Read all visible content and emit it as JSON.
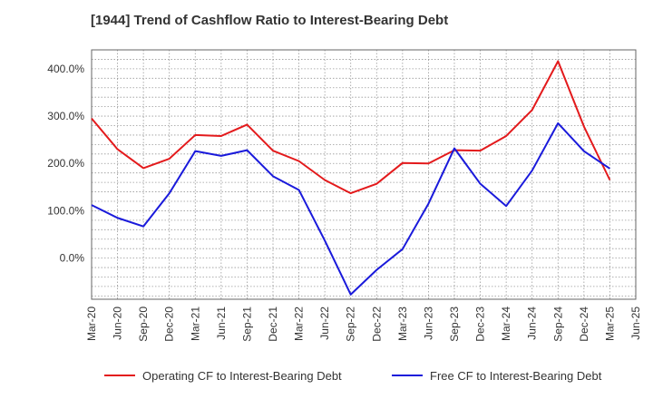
{
  "chart_data": {
    "type": "line",
    "title": "[1944]  Trend of Cashflow Ratio to Interest-Bearing Debt",
    "xlabel": "",
    "ylabel": "",
    "x": [
      "Mar-20",
      "Jun-20",
      "Sep-20",
      "Dec-20",
      "Mar-21",
      "Jun-21",
      "Sep-21",
      "Dec-21",
      "Mar-22",
      "Jun-22",
      "Sep-22",
      "Dec-22",
      "Mar-23",
      "Jun-23",
      "Sep-23",
      "Dec-23",
      "Mar-24",
      "Jun-24",
      "Sep-24",
      "Dec-24",
      "Mar-25",
      "Jun-25"
    ],
    "y_ticks": [
      0,
      100,
      200,
      300,
      400
    ],
    "y_tick_labels": [
      "0.0%",
      "100.0%",
      "200.0%",
      "300.0%",
      "400.0%"
    ],
    "ylim": [
      -87,
      440
    ],
    "grid": true,
    "legend_position": "bottom",
    "series": [
      {
        "name": "Operating CF to Interest-Bearing Debt",
        "color": "#e31a1c",
        "values": [
          295,
          230,
          190,
          210,
          260,
          258,
          282,
          227,
          205,
          165,
          137,
          157,
          201,
          200,
          228,
          227,
          258,
          313,
          416,
          278,
          165,
          null
        ]
      },
      {
        "name": "Free CF to Interest-Bearing Debt",
        "color": "#1a1adb",
        "values": [
          112,
          85,
          67,
          137,
          226,
          216,
          228,
          173,
          144,
          37,
          -77,
          -25,
          19,
          115,
          232,
          157,
          110,
          185,
          285,
          226,
          189,
          null
        ]
      }
    ]
  }
}
